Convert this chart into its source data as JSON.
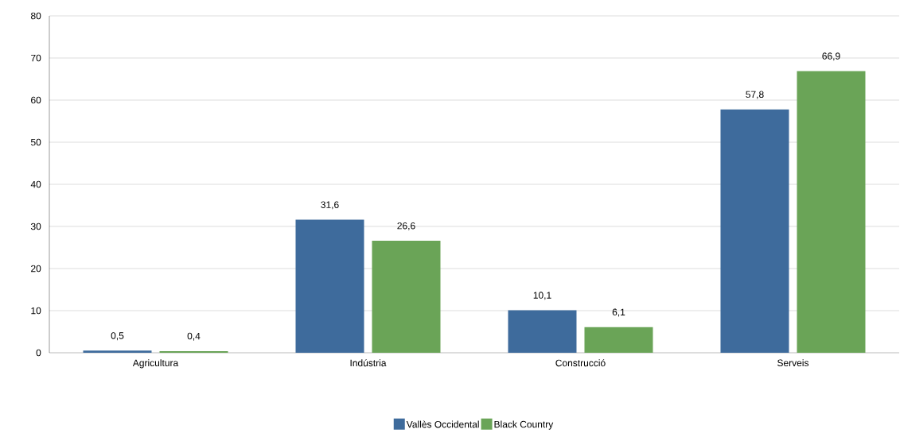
{
  "chart_data": {
    "type": "bar",
    "categories": [
      "Agricultura",
      "Indústria",
      "Construcció",
      "Serveis"
    ],
    "series": [
      {
        "name": "Vallès Occidental",
        "color": "#3e6b9c",
        "values": [
          0.5,
          31.6,
          10.1,
          57.8
        ],
        "value_labels": [
          "0,5",
          "31,6",
          "10,1",
          "57,8"
        ]
      },
      {
        "name": "Black Country",
        "color": "#6aa457",
        "values": [
          0.4,
          26.6,
          6.1,
          66.9
        ],
        "value_labels": [
          "0,4",
          "26,6",
          "6,1",
          "66,9"
        ]
      }
    ],
    "ylim": [
      0,
      80
    ],
    "yticks": [
      0,
      10,
      20,
      30,
      40,
      50,
      60,
      70,
      80
    ],
    "grid": "y",
    "legend": "bottom"
  }
}
